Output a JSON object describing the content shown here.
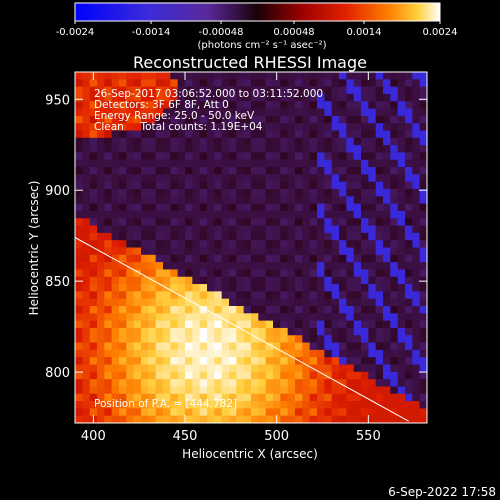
{
  "chart_data": {
    "type": "heatmap",
    "title": "Reconstructed RHESSI Image",
    "xlabel": "Heliocentric X (arcsec)",
    "ylabel": "Heliocentric Y (arcsec)",
    "xlim": [
      390,
      582
    ],
    "ylim": [
      772,
      965
    ],
    "x_ticks": [
      400,
      450,
      500,
      550
    ],
    "y_ticks": [
      800,
      850,
      900,
      950
    ],
    "colorbar": {
      "range": [
        -0.0024,
        0.0024
      ],
      "tick_labels": [
        "-0.0024",
        "-0.0014",
        "-0.00048",
        "0.00048",
        "0.0014",
        "0.0024"
      ],
      "units_label": "(photons cm⁻² s⁻¹ asec⁻²)",
      "colormap": [
        "#0000ff",
        "#3b2bd8",
        "#5a2a9c",
        "#2a0010",
        "#9a0000",
        "#e02000",
        "#ff8000",
        "#ffd040",
        "#ffffff"
      ]
    },
    "annotations": [
      "26-Sep-2017 03:06:52.000 to 03:11:52.000",
      "Detectors: 3F 6F 8F, Att 0",
      "Energy Range: 25.0 - 50.0 keV",
      "Clean     Total counts: 1.19E+04"
    ],
    "position_of_pa": "Position of P.A. = [444.782]",
    "limb_line": {
      "x": [
        390,
        572
      ],
      "y": [
        874,
        773
      ]
    },
    "grid": false
  },
  "footer_date": "6-Sep-2022 17:58"
}
